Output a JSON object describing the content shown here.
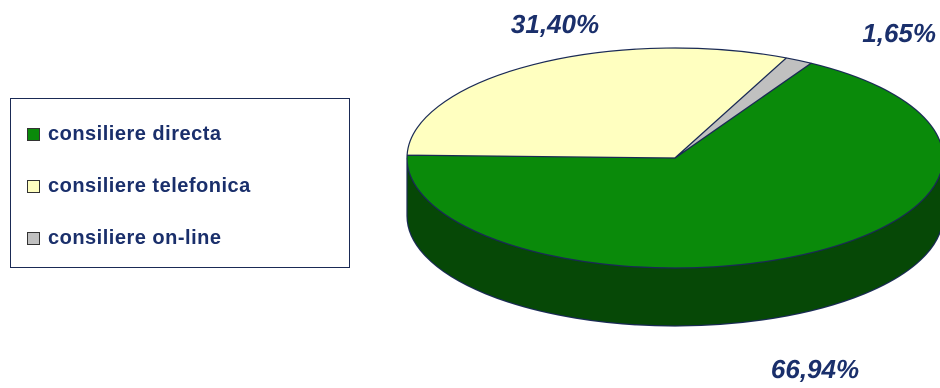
{
  "chart_data": {
    "type": "pie",
    "style": "3d",
    "categories": [
      "consiliere directa",
      "consiliere telefonica",
      "consiliere on-line"
    ],
    "values": [
      66.94,
      31.4,
      1.65
    ],
    "value_labels": [
      "66,94%",
      "31,40%",
      "1,65%"
    ],
    "unit": "%",
    "colors": [
      "#0a8a0a",
      "#ffffc0",
      "#c0c0c0"
    ],
    "side_colors": [
      "#064806",
      "#a6a67c",
      "#7c7c7c"
    ],
    "legend": {
      "placement": "left",
      "entries": [
        "consiliere directa",
        "consiliere telefonica",
        "consiliere on-line"
      ]
    }
  }
}
